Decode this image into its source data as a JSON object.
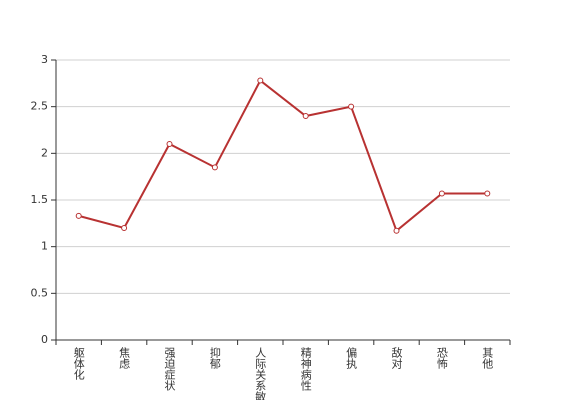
{
  "chart_data": {
    "type": "line",
    "categories": [
      "躯体化",
      "焦虑",
      "强迫症状",
      "抑郁",
      "人际关系敏感",
      "精神病性",
      "偏执",
      "敌对",
      "恐怖",
      "其他"
    ],
    "values": [
      1.33,
      1.2,
      2.1,
      1.85,
      2.78,
      2.4,
      2.5,
      1.17,
      1.57,
      1.57
    ],
    "color": "#b83232",
    "ylim": [
      0,
      3
    ],
    "yticks": [
      0,
      0.5,
      1,
      1.5,
      2,
      2.5,
      3
    ],
    "grid": true
  }
}
